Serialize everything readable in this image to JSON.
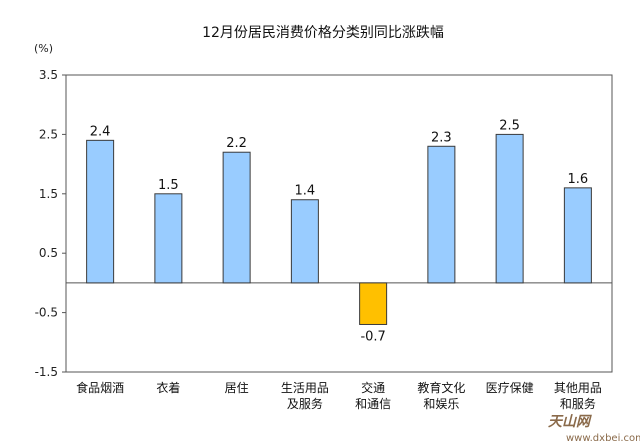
{
  "chart_data": {
    "type": "bar",
    "title": "12月份居民消费价格分类别同比涨跌幅",
    "unit_label": "(%)",
    "ylim": [
      -1.5,
      3.5
    ],
    "yticks": [
      "3.5",
      "2.5",
      "1.5",
      "0.5",
      "-0.5",
      "-1.5"
    ],
    "ytick_values": [
      3.5,
      2.5,
      1.5,
      0.5,
      -0.5,
      -1.5
    ],
    "categories": [
      [
        "食品烟酒"
      ],
      [
        "衣着"
      ],
      [
        "居住"
      ],
      [
        "生活用品",
        "及服务"
      ],
      [
        "交通",
        "和通信"
      ],
      [
        "教育文化",
        "和娱乐"
      ],
      [
        "医疗保健"
      ],
      [
        "其他用品",
        "和服务"
      ]
    ],
    "values": [
      2.4,
      1.5,
      2.2,
      1.4,
      -0.7,
      2.3,
      2.5,
      1.6
    ],
    "value_labels": [
      "2.4",
      "1.5",
      "2.2",
      "1.4",
      "-0.7",
      "2.3",
      "2.5",
      "1.6"
    ],
    "colors": {
      "positive": "#99ccff",
      "negative": "#ffc000",
      "outline": "#3a3a3a"
    },
    "grid": false
  },
  "watermark": {
    "text": "天山网",
    "url": "www.dxbei.com"
  }
}
